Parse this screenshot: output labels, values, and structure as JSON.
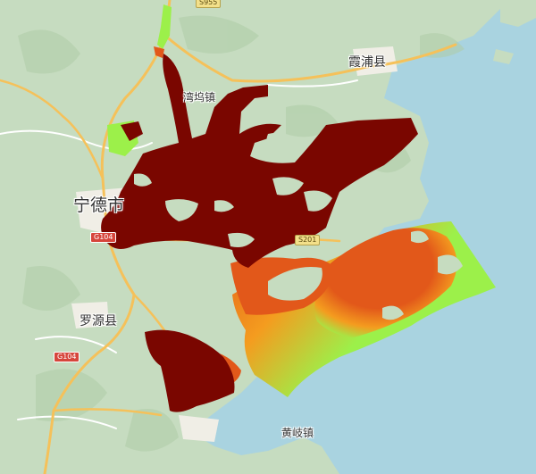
{
  "map": {
    "colors": {
      "sea": "#a9d3e0",
      "land": "#c6dcc0",
      "terrain_shadow": "#aecca6",
      "urban": "#f0eee6",
      "road_major": "#f5c15a",
      "road_minor": "#ffffff",
      "overlay_high": "#7a0600",
      "overlay_mid": "#e2581a",
      "overlay_low": "#f49c1f",
      "overlay_lowest": "#9cf04a"
    },
    "places": [
      {
        "id": "ningde",
        "label": "宁德市",
        "type": "city"
      },
      {
        "id": "xiapu",
        "label": "霞浦县",
        "type": "county"
      },
      {
        "id": "luoyuan",
        "label": "罗源县",
        "type": "county"
      },
      {
        "id": "wanwu",
        "label": "湾坞镇",
        "type": "town"
      },
      {
        "id": "huangqi",
        "label": "黄岐镇",
        "type": "town"
      }
    ],
    "road_shields": [
      {
        "id": "g104_ningde",
        "label": "G104",
        "type": "national"
      },
      {
        "id": "g104_luoyuan",
        "label": "G104",
        "type": "national"
      },
      {
        "id": "s201",
        "label": "S201",
        "type": "provincial"
      },
      {
        "id": "s955",
        "label": "S955",
        "type": "provincial"
      }
    ]
  }
}
